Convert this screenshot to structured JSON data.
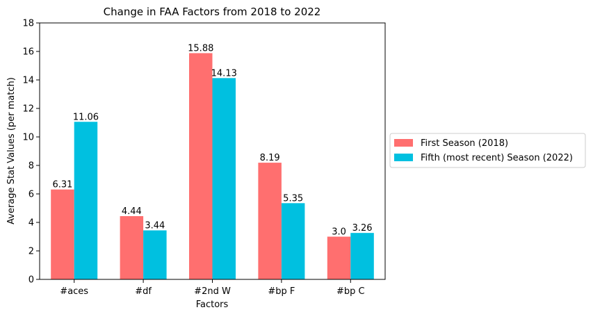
{
  "chart_data": {
    "type": "bar",
    "title": "Change in FAA Factors from 2018 to 2022",
    "xlabel": "Factors",
    "ylabel": "Average Stat Values (per match)",
    "categories": [
      "#aces",
      "#df",
      "#2nd W",
      "#bp F",
      "#bp C"
    ],
    "ylim": [
      0,
      18
    ],
    "yticks": [
      "0",
      "2",
      "4",
      "6",
      "8",
      "10",
      "12",
      "14",
      "16",
      "18"
    ],
    "grid": false,
    "legend_position": "right, outside plot",
    "series": [
      {
        "name": "First Season (2018)",
        "color": "#ff6f6f",
        "values": [
          6.31,
          4.44,
          15.88,
          8.19,
          3.0
        ],
        "labels": [
          "6.31",
          "4.44",
          "15.88",
          "8.19",
          "3.0"
        ]
      },
      {
        "name": "Fifth (most recent) Season (2022)",
        "color": "#00c0e0",
        "values": [
          11.06,
          3.44,
          14.13,
          5.35,
          3.26
        ],
        "labels": [
          "11.06",
          "3.44",
          "14.13",
          "5.35",
          "3.26"
        ]
      }
    ]
  }
}
